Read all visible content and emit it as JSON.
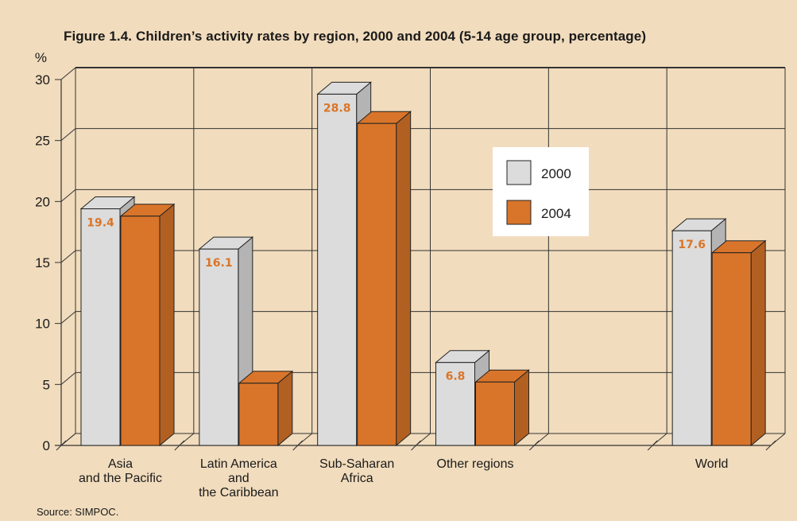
{
  "figure": {
    "title": "Figure 1.4. Children’s activity rates by region, 2000 and 2004 (5-14 age group, percentage)",
    "source": "Source: SIMPOC."
  },
  "chart_data": {
    "type": "bar",
    "title": "Figure 1.4. Children’s activity rates by region, 2000 and 2004 (5-14 age group, percentage)",
    "ylabel": "%",
    "xlabel": "",
    "ylim": [
      0,
      30
    ],
    "yticks": [
      0,
      5,
      10,
      15,
      20,
      25,
      30
    ],
    "grid": true,
    "legend_position": "center-right",
    "categories": [
      [
        "Asia",
        "and the Pacific"
      ],
      [
        "Latin America",
        "and",
        "the Caribbean"
      ],
      [
        "Sub-Saharan",
        "Africa"
      ],
      [
        "Other regions"
      ],
      [],
      [
        "World"
      ]
    ],
    "series": [
      {
        "name": "2000",
        "color": "#dcdcdc",
        "values": [
          19.4,
          16.1,
          28.8,
          6.8,
          null,
          17.6
        ]
      },
      {
        "name": "2004",
        "color": "#d9752a",
        "values": [
          18.8,
          5.1,
          26.4,
          5.2,
          null,
          15.8
        ]
      }
    ],
    "value_labels": [
      [
        "19.4",
        "16.1",
        "28.8",
        "6.8",
        null,
        "17.6"
      ],
      [
        "18.8",
        "5.1",
        "26.4",
        "5.2",
        null,
        "15.8"
      ]
    ],
    "value_label_color": "#d97528"
  }
}
